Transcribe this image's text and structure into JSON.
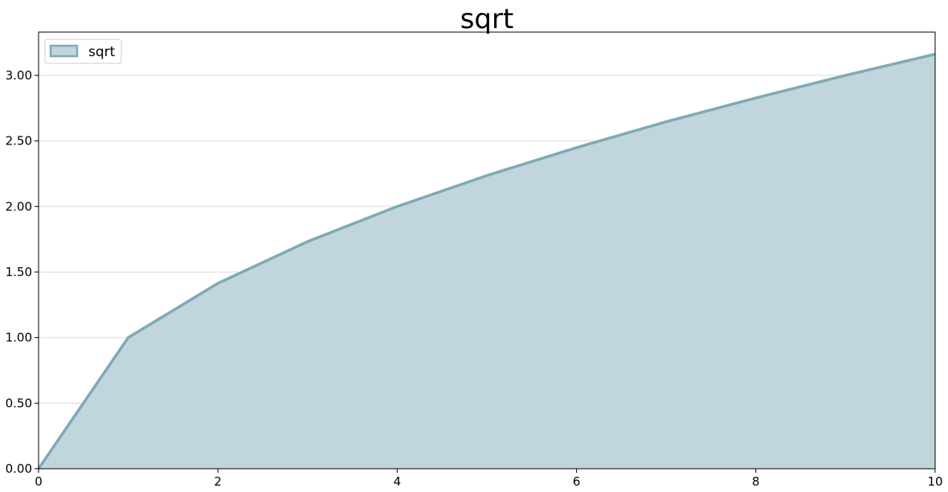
{
  "chart_data": {
    "type": "area",
    "title": "sqrt",
    "xlabel": "",
    "ylabel": "",
    "xlim": [
      0,
      10
    ],
    "ylim": [
      0,
      3.33
    ],
    "grid": "horizontal",
    "legend_position": "top-left",
    "x_ticks": [
      0,
      2,
      4,
      6,
      8,
      10
    ],
    "x_tick_labels": [
      "0",
      "2",
      "4",
      "6",
      "8",
      "10"
    ],
    "y_ticks": [
      0,
      0.5,
      1.0,
      1.5,
      2.0,
      2.5,
      3.0
    ],
    "y_tick_labels": [
      "0.00",
      "0.50",
      "1.00",
      "1.50",
      "2.00",
      "2.50",
      "3.00"
    ],
    "series": [
      {
        "name": "sqrt",
        "x": [
          0,
          1,
          2,
          3,
          4,
          5,
          6,
          7,
          8,
          9,
          10
        ],
        "values": [
          0,
          1.0,
          1.414,
          1.732,
          2.0,
          2.236,
          2.449,
          2.646,
          2.828,
          3.0,
          3.162
        ],
        "fill_color": "#c0d5dc",
        "line_color": "#7eaab4"
      }
    ]
  }
}
